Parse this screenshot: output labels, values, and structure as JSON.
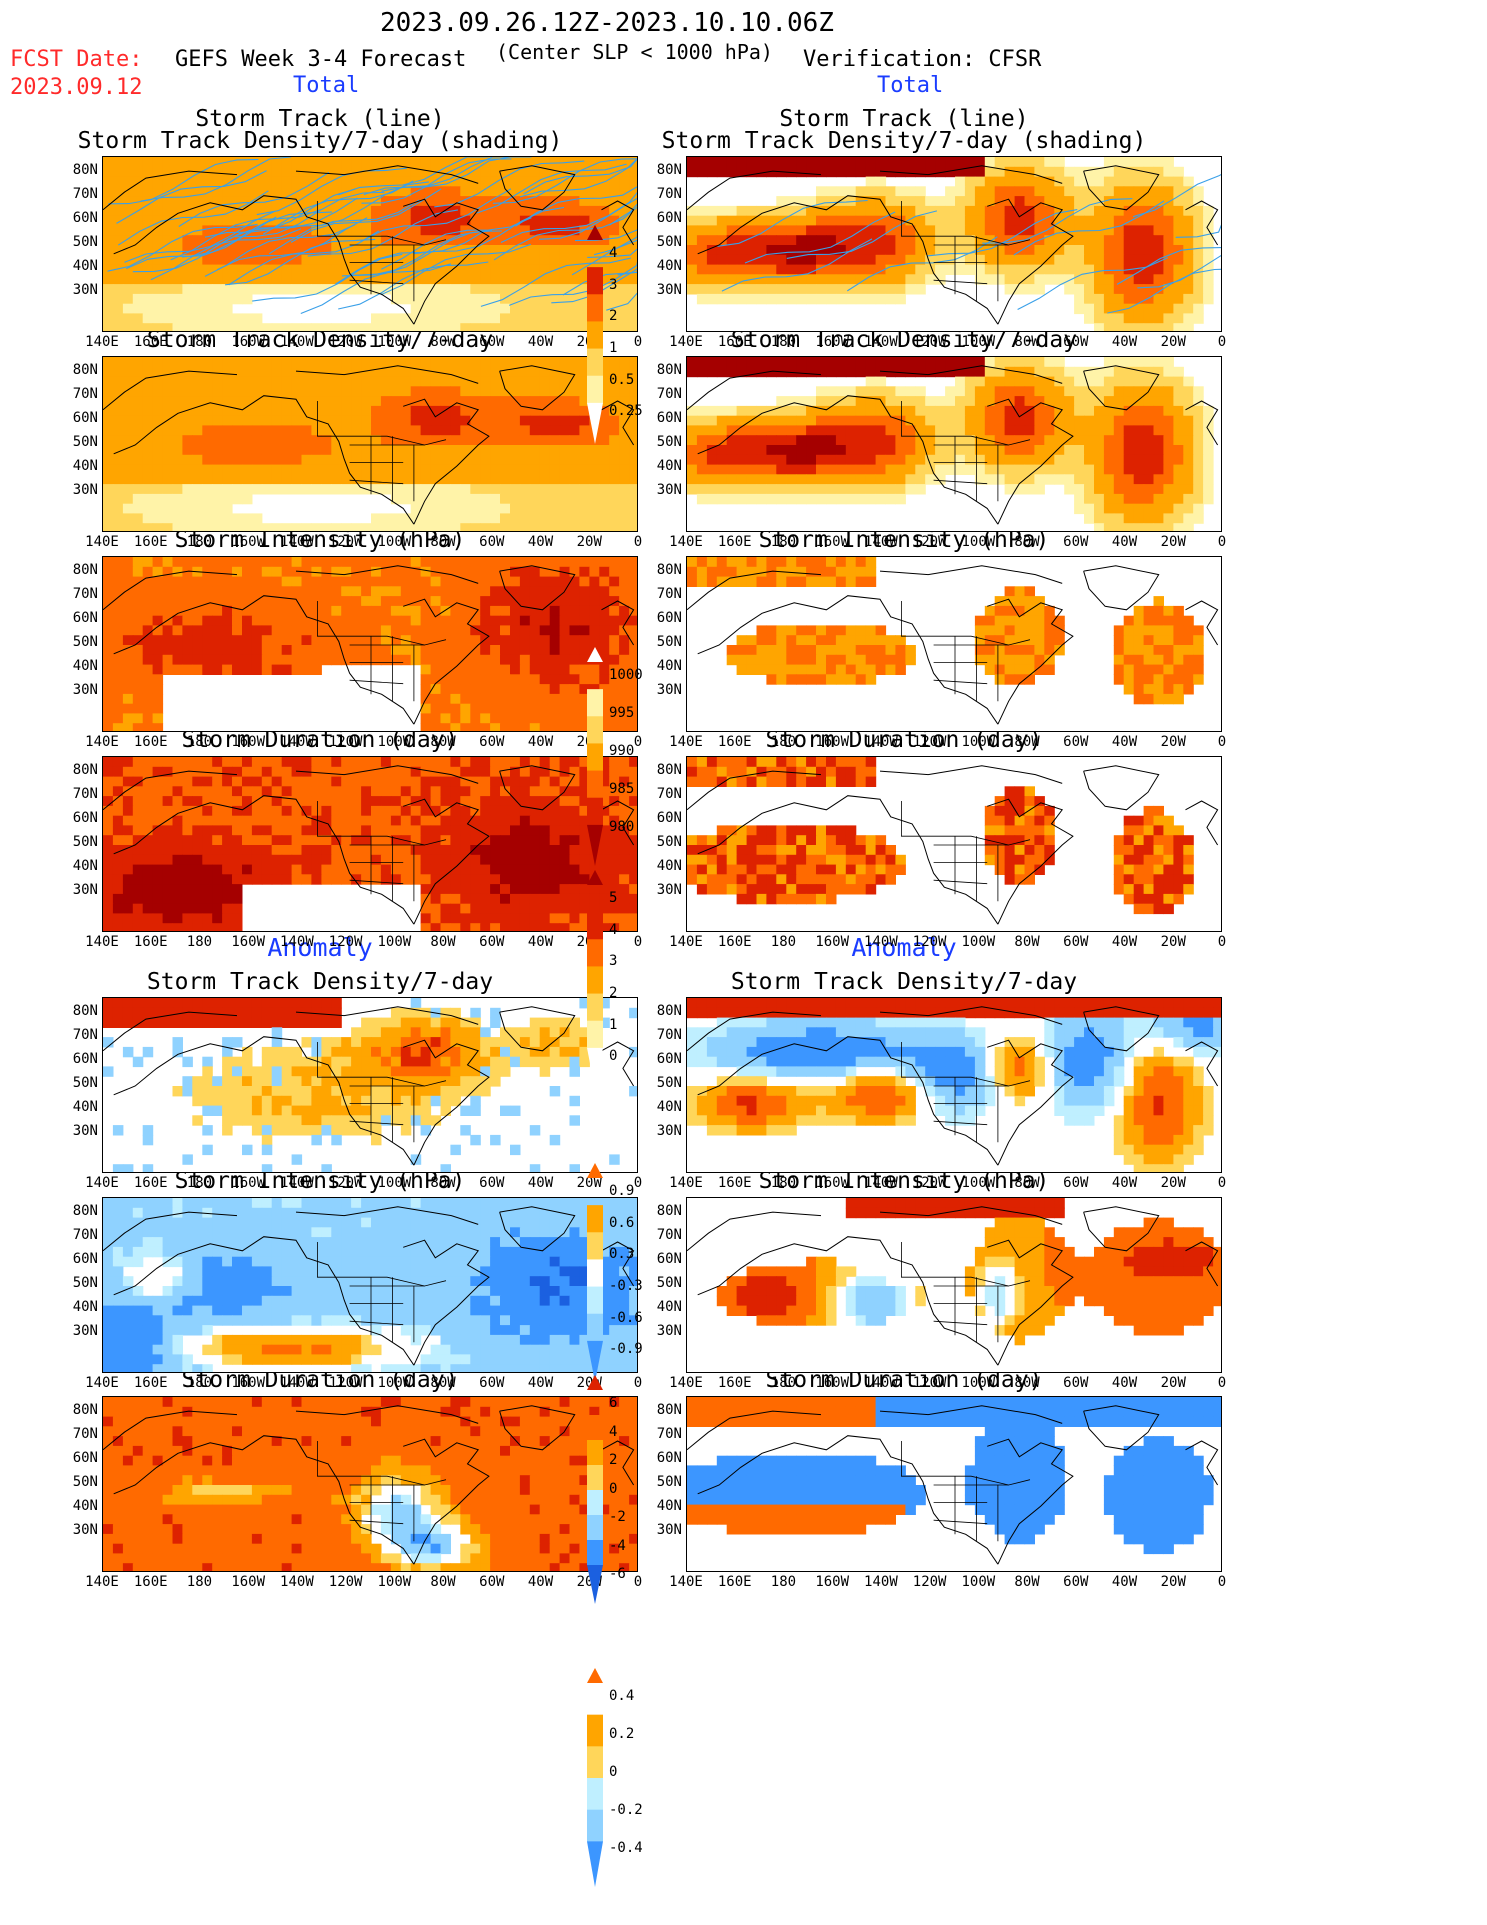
{
  "header": {
    "period": "2023.09.26.12Z-2023.10.10.06Z",
    "criterion": "(Center SLP < 1000 hPa)",
    "fcst_label": "FCST Date:",
    "fcst_date": "2023.09.12",
    "left_title": "GEFS Week 3-4 Forecast",
    "right_title": "Verification: CFSR",
    "total_label": "Total",
    "anomaly_label": "Anomaly"
  },
  "axes": {
    "lat_labels": [
      "80N",
      "70N",
      "60N",
      "50N",
      "40N",
      "30N"
    ],
    "lon_labels": [
      "140E",
      "160E",
      "180",
      "160W",
      "140W",
      "120W",
      "100W",
      "80W",
      "60W",
      "40W",
      "20W",
      "0"
    ]
  },
  "panels": {
    "track_line_title1": "Storm Track (line)",
    "track_line_title2": "Storm Track Density/7-day (shading)",
    "density_title": "Storm Track Density/7-day",
    "intensity_title": "Storm Intensity (hPa)",
    "duration_title": "Storm Duration (day)"
  },
  "colorbars": {
    "density": [
      "4",
      "3",
      "2",
      "1",
      "0.5",
      "0.25"
    ],
    "intensity": [
      "1000",
      "995",
      "990",
      "985",
      "980"
    ],
    "duration": [
      "5",
      "4",
      "3",
      "2",
      "1",
      "0"
    ],
    "density_anom": [
      "0.9",
      "0.6",
      "0.3",
      "-0.3",
      "-0.6",
      "-0.9"
    ],
    "intensity_anom": [
      "6",
      "4",
      "2",
      "0",
      "-2",
      "-4",
      "-6"
    ],
    "duration_anom": [
      "0.4",
      "0.2",
      "0",
      "-0.2",
      "-0.4"
    ]
  },
  "colors": {
    "warm": [
      "#fff3a8",
      "#ffd65a",
      "#ffa500",
      "#ff6a00",
      "#dd2200",
      "#a50000"
    ],
    "cool": [
      "#bfefff",
      "#8fd2ff",
      "#3c96ff",
      "#1b60e0"
    ],
    "track": "#3aa0e8"
  }
}
